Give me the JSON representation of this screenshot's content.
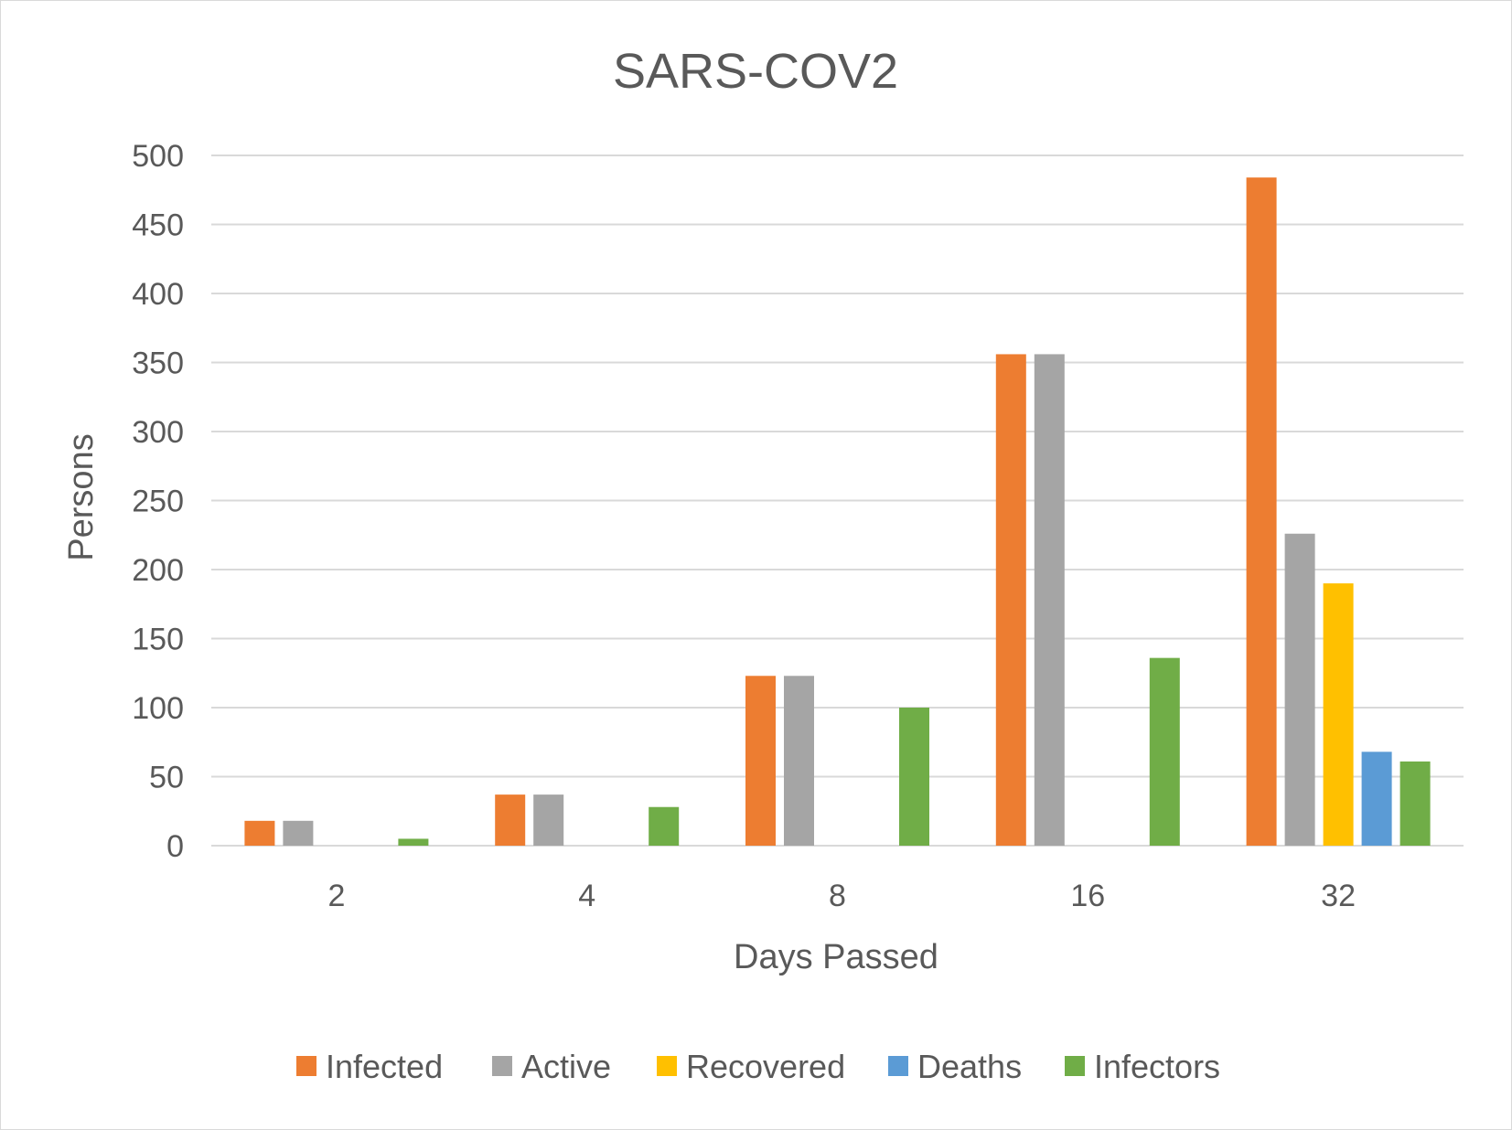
{
  "chart_data": {
    "type": "bar",
    "title": "SARS-COV2",
    "xlabel": "Days Passed",
    "ylabel": "Persons",
    "categories": [
      "2",
      "4",
      "8",
      "16",
      "32"
    ],
    "ylim": [
      0,
      500
    ],
    "yticks": [
      0,
      50,
      100,
      150,
      200,
      250,
      300,
      350,
      400,
      450,
      500
    ],
    "grid": true,
    "legend_position": "bottom",
    "series": [
      {
        "name": "Infected",
        "color": "#ED7D31",
        "values": [
          18,
          37,
          123,
          356,
          484
        ]
      },
      {
        "name": "Active",
        "color": "#A5A5A5",
        "values": [
          18,
          37,
          123,
          356,
          226
        ]
      },
      {
        "name": "Recovered",
        "color": "#FFC000",
        "values": [
          0,
          0,
          0,
          0,
          190
        ]
      },
      {
        "name": "Deaths",
        "color": "#5B9BD5",
        "values": [
          0,
          0,
          0,
          0,
          68
        ]
      },
      {
        "name": "Infectors",
        "color": "#70AD47",
        "values": [
          5,
          28,
          100,
          136,
          61
        ]
      }
    ]
  }
}
